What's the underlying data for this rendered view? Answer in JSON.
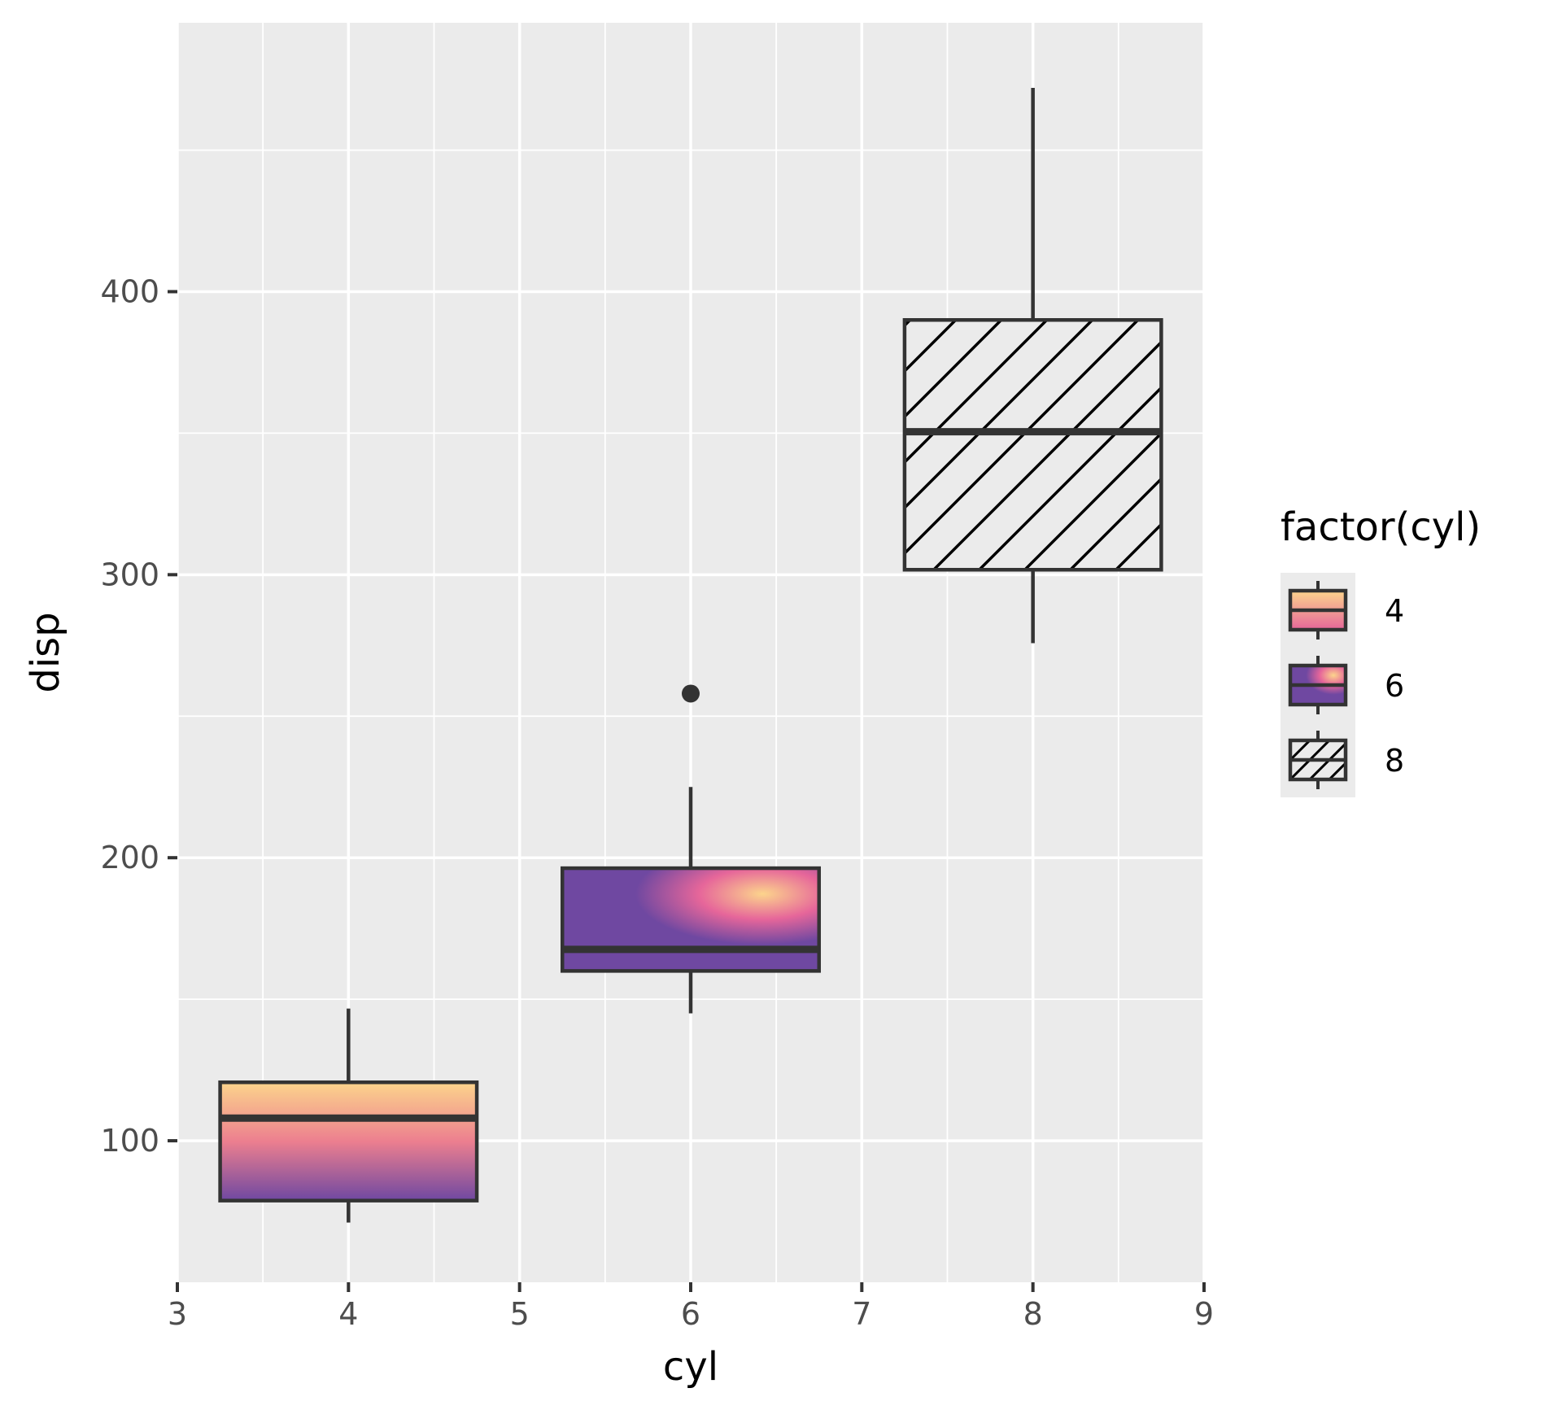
{
  "chart_data": {
    "type": "boxplot",
    "xlabel": "cyl",
    "ylabel": "disp",
    "xlim": [
      3,
      9
    ],
    "ylim": [
      50,
      495
    ],
    "x_ticks": [
      3,
      4,
      5,
      6,
      7,
      8,
      9
    ],
    "y_ticks": [
      100,
      200,
      300,
      400
    ],
    "grid": true,
    "boxes": [
      {
        "group": "4",
        "x": 4,
        "min": 71.1,
        "q1": 78.85,
        "median": 108.0,
        "q3": 120.65,
        "max": 146.7,
        "outliers": [],
        "fill": "gradient-vertical"
      },
      {
        "group": "6",
        "x": 6,
        "min": 145.0,
        "q1": 160.0,
        "median": 167.6,
        "q3": 196.3,
        "max": 225.0,
        "outliers": [
          258.0
        ],
        "fill": "gradient-radial"
      },
      {
        "group": "8",
        "x": 8,
        "min": 275.8,
        "q1": 301.75,
        "median": 350.5,
        "q3": 390.0,
        "max": 472.0,
        "outliers": [],
        "fill": "hatch"
      }
    ],
    "legend": {
      "title": "factor(cyl)",
      "position": "right",
      "items": [
        {
          "label": "4",
          "fill": "gradient-vertical"
        },
        {
          "label": "6",
          "fill": "gradient-radial"
        },
        {
          "label": "8",
          "fill": "hatch"
        }
      ]
    },
    "colors": {
      "panel_background": "#ebebeb",
      "grid": "#ffffff",
      "box_outline": "#333333",
      "gradient_light": "#fcd48c",
      "gradient_mid": "#e6669a",
      "gradient_dark": "#6f48a1",
      "radial_outer": "#f2e69b"
    }
  }
}
